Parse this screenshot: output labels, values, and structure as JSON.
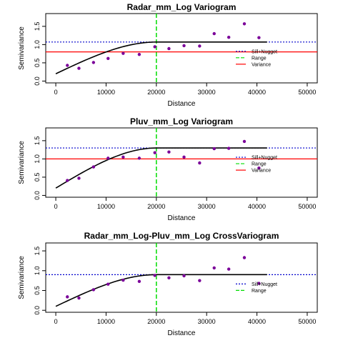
{
  "chart_data": [
    {
      "type": "scatter",
      "title": "Radar_mm_Log Variogram",
      "xlabel": "Distance",
      "ylabel": "Semivariance",
      "xlim": [
        0,
        50000
      ],
      "ylim": [
        0,
        1.85
      ],
      "x_ticks": [
        "0",
        "10000",
        "20000",
        "30000",
        "40000",
        "50000"
      ],
      "y_ticks": [
        "0.0",
        "0.5",
        "1.0",
        "1.5"
      ],
      "legend_position": "right",
      "legend": [
        "Sill+Nugget",
        "Range",
        "Variance"
      ],
      "points": {
        "x": [
          2300,
          4600,
          7500,
          10400,
          13400,
          16600,
          19700,
          22500,
          25500,
          28600,
          31500,
          34400,
          37500,
          40400
        ],
        "y": [
          0.43,
          0.35,
          0.51,
          0.62,
          0.76,
          0.73,
          0.94,
          0.89,
          0.97,
          0.96,
          1.3,
          1.2,
          1.57,
          1.19
        ]
      },
      "model": {
        "nugget": 0.2,
        "sill": 1.07,
        "range": 20000,
        "x_end": 42000
      },
      "sill_nugget": 1.07,
      "range": 20000,
      "variance": 0.8,
      "colors": {
        "points": "#7b0099",
        "model": "#000000",
        "sill": "#0000cc",
        "range": "#00dd00",
        "variance": "#ff0000"
      }
    },
    {
      "type": "scatter",
      "title": "Pluv_mm_Log Variogram",
      "xlabel": "Distance",
      "ylabel": "Semivariance",
      "xlim": [
        0,
        50000
      ],
      "ylim": [
        0,
        1.85
      ],
      "x_ticks": [
        "0",
        "10000",
        "20000",
        "30000",
        "40000",
        "50000"
      ],
      "y_ticks": [
        "0.0",
        "0.5",
        "1.0",
        "1.5"
      ],
      "legend_position": "right",
      "legend": [
        "Sill+Nugget",
        "Range",
        "Variance"
      ],
      "points": {
        "x": [
          2300,
          4600,
          7500,
          10400,
          13400,
          16600,
          19700,
          22500,
          25500,
          28600,
          31500,
          34400,
          37500,
          40400
        ],
        "y": [
          0.41,
          0.47,
          0.78,
          1.02,
          1.05,
          1.02,
          1.17,
          1.19,
          1.05,
          0.89,
          1.28,
          1.29,
          1.48,
          0.75
        ]
      },
      "model": {
        "nugget": 0.2,
        "sill": 1.3,
        "range": 20000,
        "x_end": 42000
      },
      "sill_nugget": 1.3,
      "range": 20000,
      "variance": 1.0,
      "colors": {
        "points": "#7b0099",
        "model": "#000000",
        "sill": "#0000cc",
        "range": "#00dd00",
        "variance": "#ff0000"
      }
    },
    {
      "type": "scatter",
      "title": "Radar_mm_Log-Pluv_mm_Log CrossVariogram",
      "xlabel": "Distance",
      "ylabel": "Semivariance",
      "xlim": [
        0,
        50000
      ],
      "ylim": [
        0,
        1.7
      ],
      "x_ticks": [
        "0",
        "10000",
        "20000",
        "30000",
        "40000",
        "50000"
      ],
      "y_ticks": [
        "0.0",
        "0.5",
        "1.0",
        "1.5"
      ],
      "legend_position": "right",
      "legend": [
        "Sill+Nugget",
        "Range"
      ],
      "points": {
        "x": [
          2300,
          4600,
          7500,
          10400,
          13400,
          16600,
          19700,
          22500,
          25500,
          28600,
          31500,
          34400,
          37500,
          40400
        ],
        "y": [
          0.34,
          0.31,
          0.52,
          0.66,
          0.76,
          0.73,
          0.88,
          0.82,
          0.87,
          0.75,
          1.07,
          1.04,
          1.33,
          0.68
        ]
      },
      "model": {
        "nugget": 0.1,
        "sill": 0.9,
        "range": 20000,
        "x_end": 42000
      },
      "sill_nugget": 0.9,
      "range": 20000,
      "colors": {
        "points": "#7b0099",
        "model": "#000000",
        "sill": "#0000cc",
        "range": "#00dd00"
      }
    }
  ]
}
